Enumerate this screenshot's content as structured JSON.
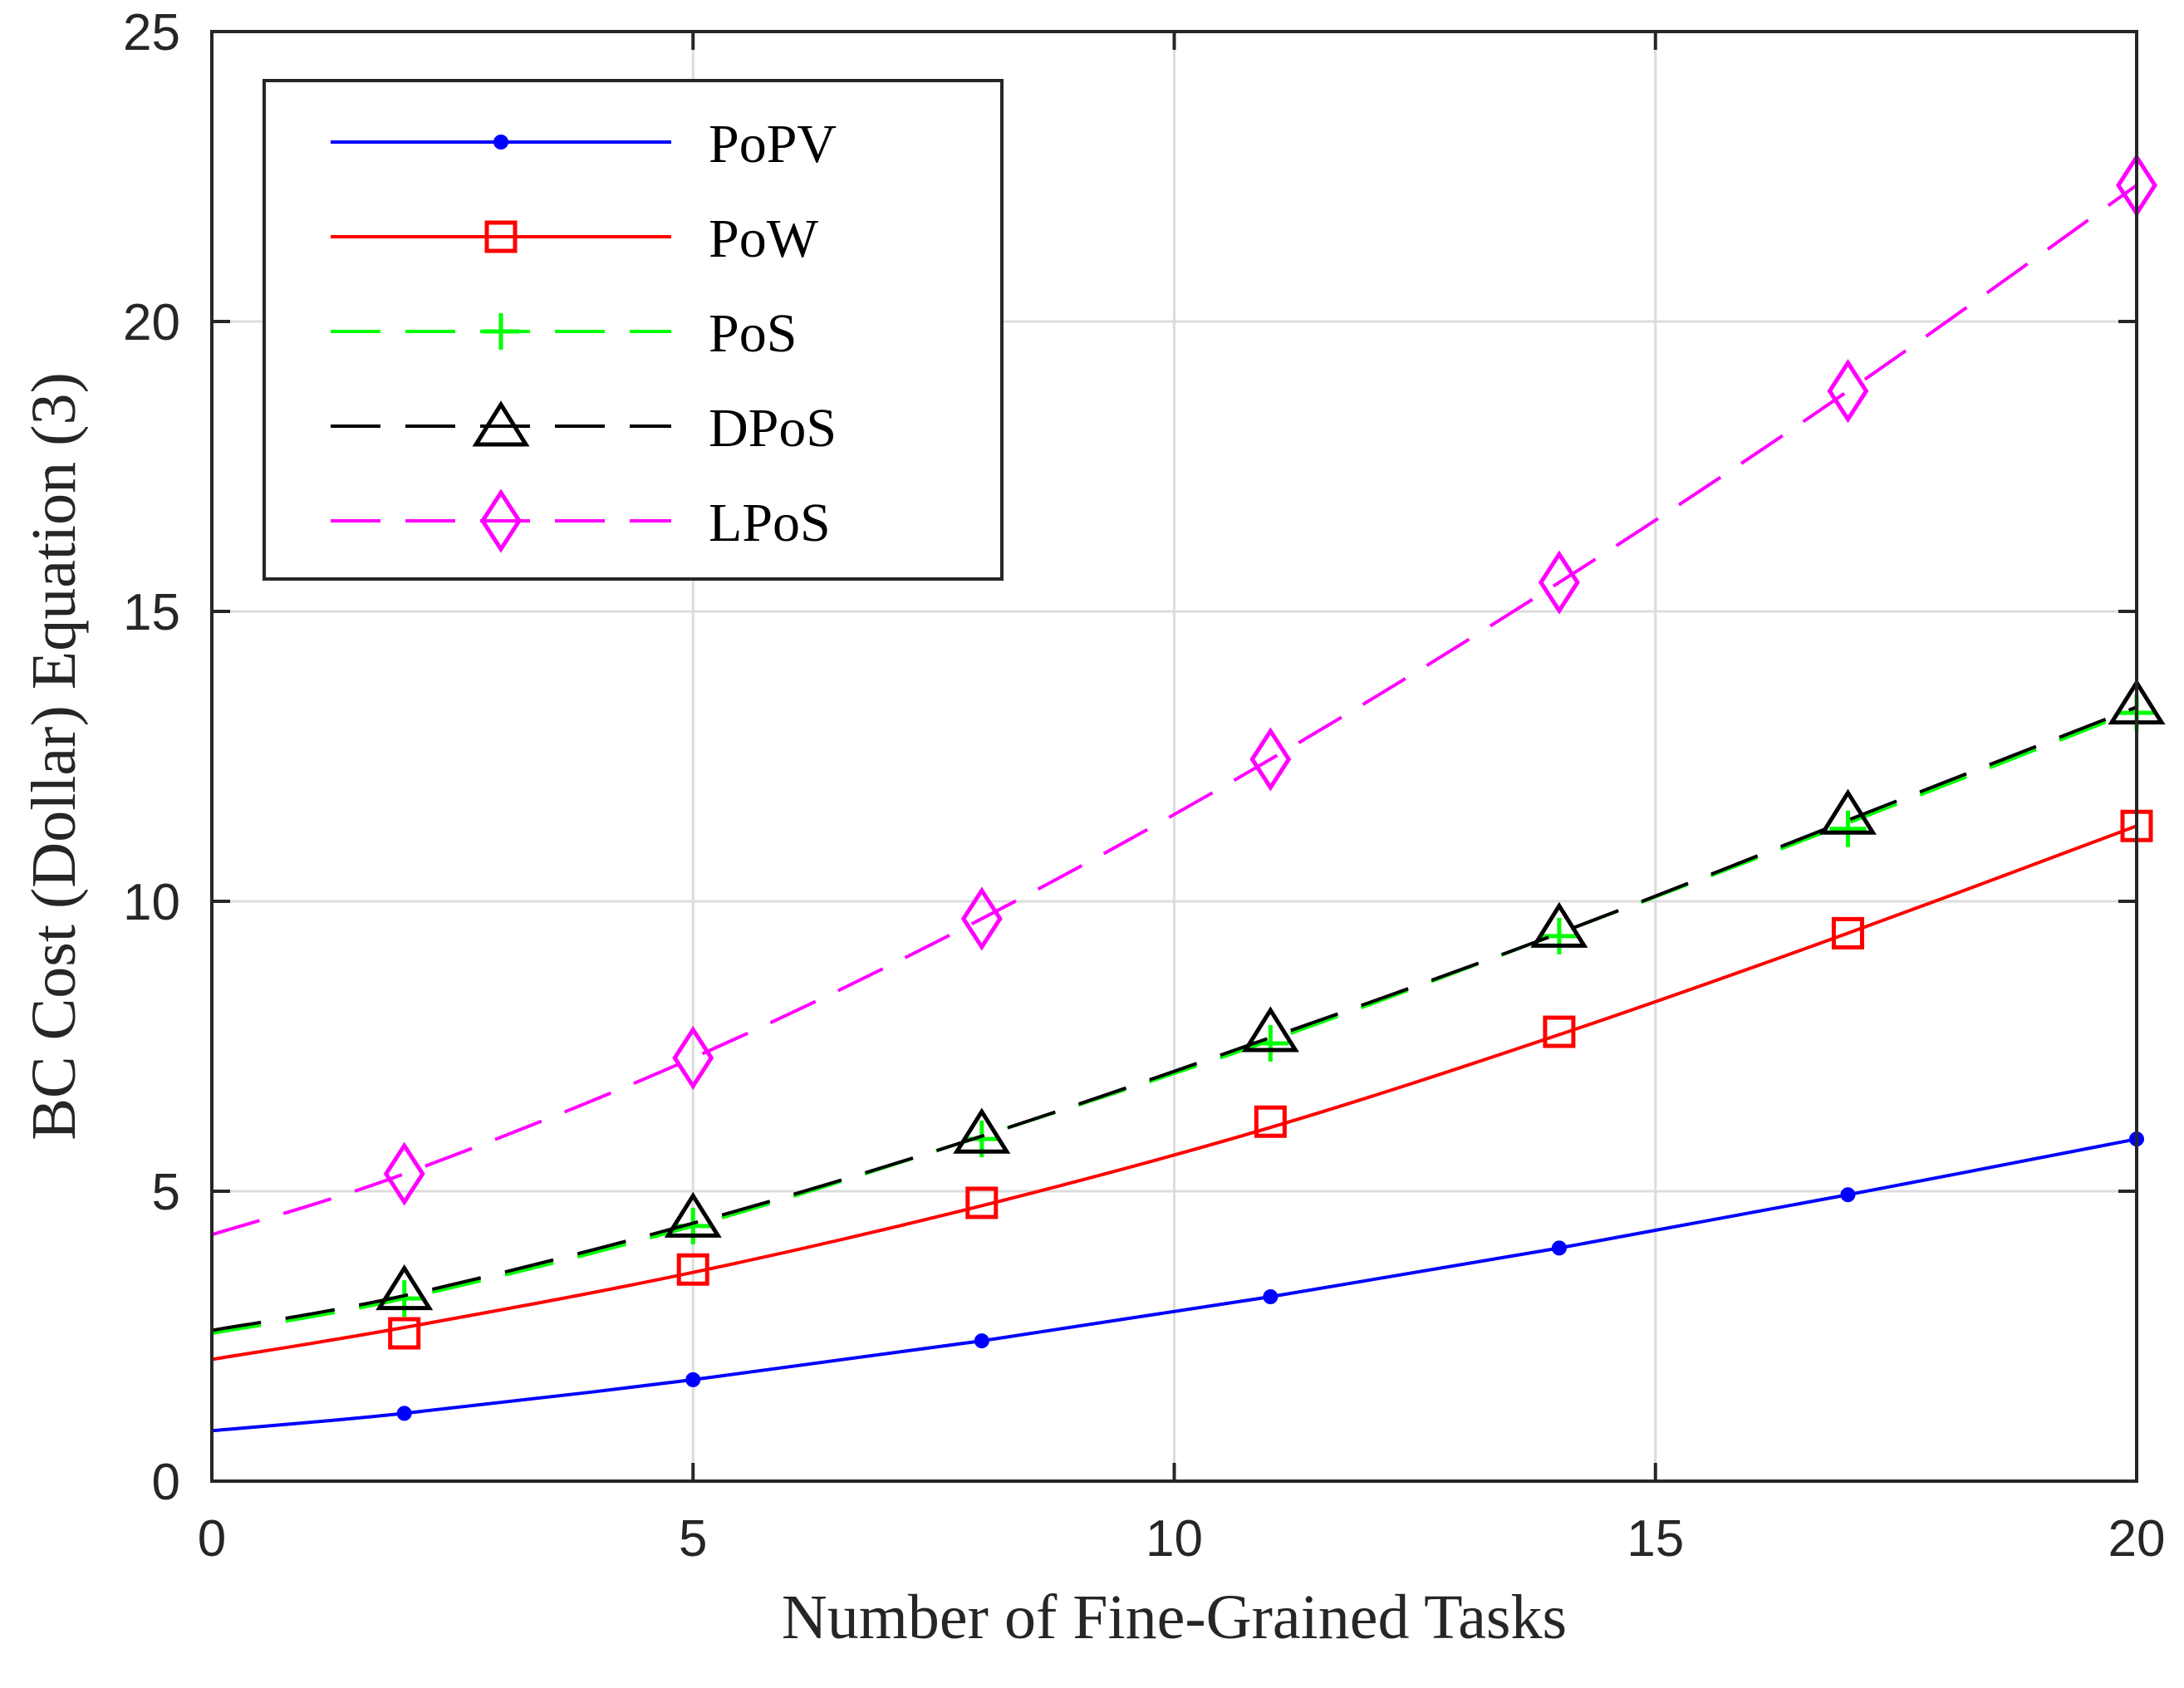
{
  "chart_data": {
    "type": "line",
    "title": "",
    "xlabel": "Number of Fine-Grained Tasks",
    "ylabel": "BC Cost (Dollar) Equation (3)",
    "xlim": [
      0,
      20
    ],
    "ylim": [
      0,
      25
    ],
    "xticks": [
      0,
      5,
      10,
      15,
      20
    ],
    "yticks": [
      0,
      5,
      10,
      15,
      20,
      25
    ],
    "xtick_labels": [
      "0",
      "5",
      "10",
      "15",
      "20"
    ],
    "ytick_labels": [
      "0",
      "5",
      "10",
      "15",
      "20",
      "25"
    ],
    "grid": true,
    "legend_position": "top-left",
    "marker_x": [
      2,
      5,
      8,
      11,
      14,
      17,
      20
    ],
    "series": [
      {
        "name": "PoPV",
        "color": "#0000ff",
        "line_style": "solid",
        "marker": "dot",
        "curve": [
          [
            0,
            0.87
          ],
          [
            2,
            1.17
          ],
          [
            5,
            1.75
          ],
          [
            8,
            2.42
          ],
          [
            11,
            3.18
          ],
          [
            14,
            4.02
          ],
          [
            17,
            4.94
          ],
          [
            20,
            5.9
          ]
        ]
      },
      {
        "name": "PoW",
        "color": "#ff0000",
        "line_style": "solid",
        "marker": "square",
        "curve": [
          [
            0,
            2.1
          ],
          [
            2,
            2.65
          ],
          [
            5,
            3.6
          ],
          [
            8,
            4.75
          ],
          [
            11,
            6.1
          ],
          [
            14,
            7.7
          ],
          [
            17,
            9.45
          ],
          [
            20,
            11.3
          ]
        ],
        "markers": [
          [
            2,
            2.55
          ],
          [
            5,
            3.65
          ],
          [
            8,
            4.8
          ],
          [
            11,
            6.2
          ],
          [
            14,
            7.75
          ],
          [
            17,
            9.45
          ],
          [
            20,
            11.3
          ]
        ]
      },
      {
        "name": "PoS",
        "color": "#00ff00",
        "line_style": "dashed",
        "marker": "plus",
        "curve": [
          [
            0,
            2.55
          ],
          [
            2,
            3.15
          ],
          [
            5,
            4.4
          ],
          [
            8,
            5.95
          ],
          [
            11,
            7.6
          ],
          [
            14,
            9.45
          ],
          [
            17,
            11.35
          ],
          [
            20,
            13.3
          ]
        ],
        "markers": [
          [
            2,
            3.15
          ],
          [
            5,
            4.4
          ],
          [
            8,
            5.9
          ],
          [
            11,
            7.55
          ],
          [
            14,
            9.4
          ],
          [
            17,
            11.25
          ],
          [
            20,
            13.25
          ]
        ]
      },
      {
        "name": "DPoS",
        "color": "#000000",
        "line_style": "dashed",
        "marker": "triangle",
        "curve": [
          [
            0,
            2.6
          ],
          [
            2,
            3.2
          ],
          [
            5,
            4.45
          ],
          [
            8,
            5.95
          ],
          [
            11,
            7.65
          ],
          [
            14,
            9.45
          ],
          [
            17,
            11.4
          ],
          [
            20,
            13.35
          ]
        ],
        "markers": [
          [
            2,
            3.3
          ],
          [
            5,
            4.55
          ],
          [
            8,
            6.0
          ],
          [
            11,
            7.75
          ],
          [
            14,
            9.55
          ],
          [
            17,
            11.5
          ],
          [
            20,
            13.4
          ]
        ]
      },
      {
        "name": "LPoS",
        "color": "#ff00ff",
        "line_style": "dashed",
        "marker": "diamond",
        "curve": [
          [
            0,
            4.25
          ],
          [
            2,
            5.3
          ],
          [
            5,
            7.3
          ],
          [
            8,
            9.7
          ],
          [
            11,
            12.45
          ],
          [
            14,
            15.5
          ],
          [
            17,
            18.8
          ],
          [
            20,
            22.35
          ]
        ],
        "markers": [
          [
            2,
            5.3
          ],
          [
            5,
            7.3
          ],
          [
            8,
            9.7
          ],
          [
            11,
            12.45
          ],
          [
            14,
            15.5
          ],
          [
            17,
            18.8
          ],
          [
            20,
            22.35
          ]
        ]
      }
    ]
  }
}
